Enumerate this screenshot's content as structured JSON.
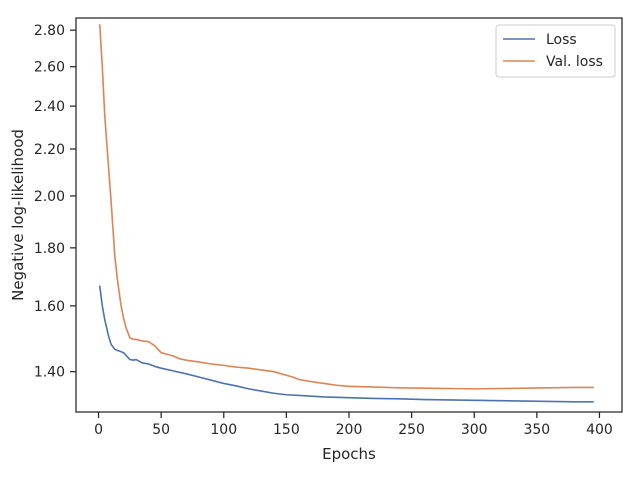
{
  "chart_data": {
    "type": "line",
    "title": "",
    "xlabel": "Epochs",
    "ylabel": "Negative log-likelihood",
    "xlim": [
      -18,
      418
    ],
    "ylim": [
      1.29,
      2.87
    ],
    "yscale": "log",
    "x_ticks": [
      0,
      50,
      100,
      150,
      200,
      250,
      300,
      350,
      400
    ],
    "x_tick_labels": [
      "0",
      "50",
      "100",
      "150",
      "200",
      "250",
      "300",
      "350",
      "400"
    ],
    "y_ticks": [
      1.4,
      1.6,
      1.8,
      2.0,
      2.2,
      2.4,
      2.6,
      2.8
    ],
    "y_tick_labels": [
      "1.40",
      "1.60",
      "1.80",
      "2.00",
      "2.20",
      "2.40",
      "2.60",
      "2.80"
    ],
    "grid": false,
    "legend": {
      "position": "top-right"
    },
    "series": [
      {
        "name": "Loss",
        "color": "#4c72b0",
        "x": [
          1,
          3,
          5,
          8,
          10,
          13,
          15,
          18,
          20,
          22,
          25,
          28,
          30,
          35,
          40,
          45,
          50,
          60,
          70,
          80,
          90,
          100,
          110,
          120,
          130,
          140,
          150,
          160,
          170,
          180,
          190,
          200,
          220,
          240,
          260,
          280,
          300,
          320,
          340,
          360,
          380,
          395
        ],
        "y": [
          1.665,
          1.6,
          1.555,
          1.505,
          1.48,
          1.465,
          1.462,
          1.458,
          1.455,
          1.447,
          1.435,
          1.433,
          1.435,
          1.425,
          1.422,
          1.415,
          1.41,
          1.402,
          1.394,
          1.385,
          1.376,
          1.367,
          1.36,
          1.352,
          1.346,
          1.34,
          1.336,
          1.334,
          1.332,
          1.33,
          1.329,
          1.328,
          1.326,
          1.325,
          1.323,
          1.322,
          1.321,
          1.32,
          1.319,
          1.318,
          1.317,
          1.317
        ]
      },
      {
        "name": "Val. loss",
        "color": "#dd8452",
        "x": [
          1,
          3,
          5,
          8,
          10,
          13,
          15,
          18,
          20,
          22,
          25,
          28,
          30,
          35,
          40,
          45,
          50,
          55,
          60,
          65,
          70,
          80,
          90,
          100,
          110,
          120,
          130,
          140,
          150,
          155,
          160,
          170,
          180,
          190,
          200,
          220,
          240,
          260,
          280,
          300,
          320,
          340,
          360,
          380,
          395
        ],
        "y": [
          2.83,
          2.6,
          2.35,
          2.12,
          1.98,
          1.77,
          1.69,
          1.6,
          1.56,
          1.53,
          1.5,
          1.495,
          1.495,
          1.49,
          1.488,
          1.475,
          1.455,
          1.45,
          1.445,
          1.437,
          1.433,
          1.428,
          1.422,
          1.418,
          1.413,
          1.41,
          1.405,
          1.4,
          1.39,
          1.385,
          1.378,
          1.372,
          1.367,
          1.362,
          1.359,
          1.357,
          1.355,
          1.354,
          1.353,
          1.352,
          1.353,
          1.354,
          1.355,
          1.356,
          1.356
        ]
      }
    ]
  }
}
